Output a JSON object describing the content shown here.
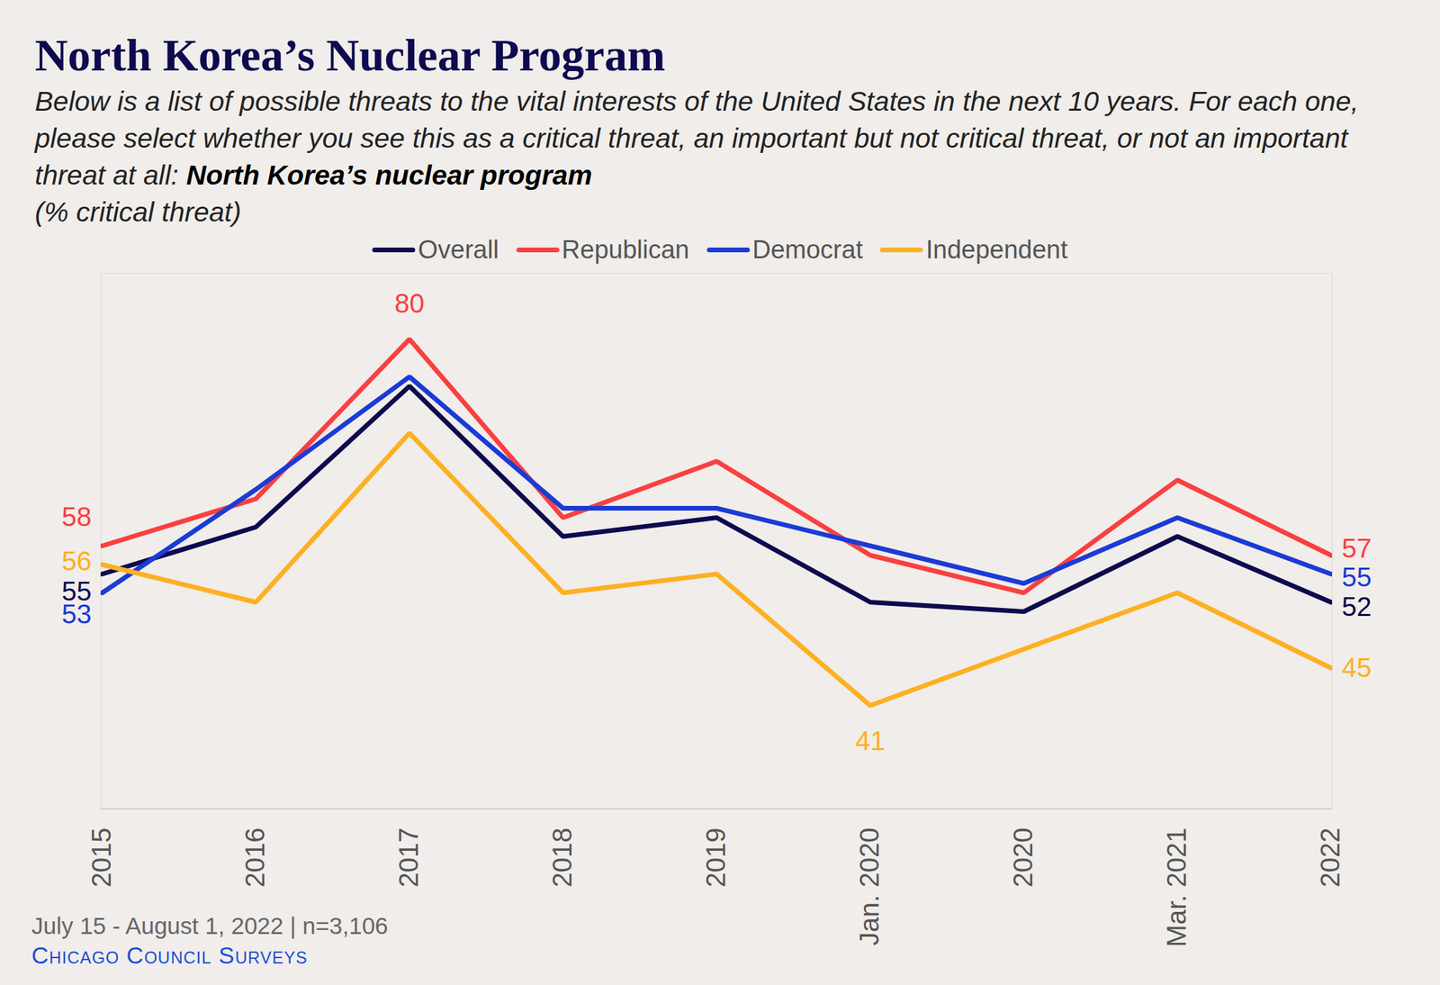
{
  "chart_data": {
    "type": "line",
    "title": "North Korea’s Nuclear Program",
    "subtitle": [
      "Below is a list of possible threats to the vital interests of the United States in the next 10 years. For each one, please select whether you see this as a critical threat, an important but not critical threat, or not an important threat at all: ",
      "North Korea’s nuclear program"
    ],
    "ylabel": "(% critical threat)",
    "note": "July 15 - August 1, 2022 | n=3,106",
    "source": "Chicago Council Surveys",
    "categories": [
      "2015",
      "2016",
      "2017",
      "2018",
      "2019",
      "Jan. 2020",
      "2020",
      "Mar. 2021",
      "2022"
    ],
    "series": [
      {
        "name": "Overall",
        "color": "#0d0a4f",
        "values": [
          55,
          60,
          75,
          59,
          61,
          52,
          51,
          59,
          52
        ],
        "value_labels": [
          "55",
          null,
          null,
          null,
          null,
          null,
          null,
          null,
          "52"
        ]
      },
      {
        "name": "Republican",
        "color": "#f94040",
        "values": [
          58,
          63,
          80,
          61,
          67,
          57,
          53,
          65,
          57
        ],
        "value_labels": [
          "58",
          null,
          "80",
          null,
          null,
          null,
          null,
          null,
          "57"
        ]
      },
      {
        "name": "Democrat",
        "color": "#1b3bd6",
        "values": [
          53,
          64,
          76,
          62,
          62,
          58,
          54,
          61,
          55
        ],
        "value_labels": [
          "53",
          null,
          null,
          null,
          null,
          null,
          null,
          null,
          "55"
        ]
      },
      {
        "name": "Independent",
        "color": "#fdb022",
        "values": [
          56,
          52,
          70,
          53,
          55,
          41,
          47,
          53,
          45
        ],
        "value_labels": [
          "56",
          null,
          null,
          null,
          null,
          "41",
          null,
          null,
          "45"
        ]
      }
    ],
    "ylim": [
      30,
      87
    ],
    "yticks": [],
    "tick_labels": "x",
    "grid": false,
    "legend": "top",
    "data_labels": true
  }
}
